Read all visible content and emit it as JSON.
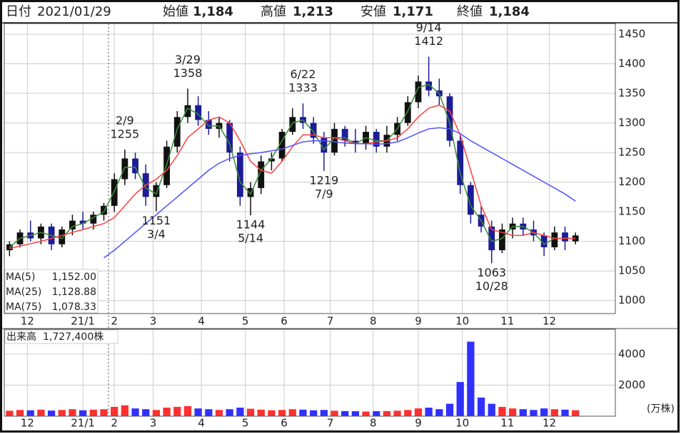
{
  "header": {
    "date_label": "日付",
    "date": "2021/01/29",
    "items": [
      {
        "name": "始値",
        "value": {
          "value": 1184,
          "label": "1,184"
        },
        "color": "#111111"
      },
      {
        "name": "高値",
        "value": {
          "value": 1213,
          "label": "1,213"
        },
        "color": "#e62020"
      },
      {
        "name": "安値",
        "value": {
          "value": 1171,
          "label": "1,171"
        },
        "color": "#1f8a1f"
      },
      {
        "name": "終値",
        "value": {
          "value": 1184,
          "label": "1,184"
        },
        "color": "#111111"
      }
    ]
  },
  "chart_data": {
    "type": "candlestick",
    "open": [
      1085,
      1095,
      1115,
      1105,
      1125,
      1095,
      1120,
      1135,
      1130,
      1145,
      1160,
      1205,
      1240,
      1215,
      1175,
      1195,
      1260,
      1310,
      1330,
      1305,
      1290,
      1300,
      1250,
      1175,
      1190,
      1235,
      1240,
      1285,
      1310,
      1300,
      1275,
      1250,
      1290,
      1270,
      1265,
      1285,
      1260,
      1280,
      1300,
      1335,
      1370,
      1355,
      1345,
      1270,
      1195,
      1145,
      1125,
      1085,
      1120,
      1130,
      1120,
      1110,
      1090,
      1115,
      1100
    ],
    "high": [
      1100,
      1120,
      1135,
      1130,
      1130,
      1125,
      1145,
      1150,
      1150,
      1165,
      1215,
      1255,
      1250,
      1230,
      1200,
      1270,
      1320,
      1358,
      1345,
      1320,
      1310,
      1305,
      1260,
      1200,
      1245,
      1250,
      1290,
      1325,
      1333,
      1310,
      1285,
      1300,
      1295,
      1290,
      1295,
      1290,
      1295,
      1310,
      1345,
      1380,
      1412,
      1375,
      1350,
      1280,
      1200,
      1160,
      1135,
      1130,
      1140,
      1140,
      1135,
      1115,
      1125,
      1125,
      1115
    ],
    "low": [
      1075,
      1090,
      1100,
      1095,
      1085,
      1090,
      1110,
      1120,
      1120,
      1135,
      1150,
      1195,
      1205,
      1160,
      1151,
      1190,
      1250,
      1300,
      1295,
      1280,
      1275,
      1235,
      1160,
      1144,
      1180,
      1220,
      1235,
      1280,
      1290,
      1265,
      1219,
      1245,
      1260,
      1250,
      1255,
      1250,
      1250,
      1270,
      1295,
      1325,
      1345,
      1330,
      1260,
      1180,
      1130,
      1115,
      1063,
      1080,
      1105,
      1110,
      1100,
      1075,
      1085,
      1085,
      1095
    ],
    "close": [
      1095,
      1115,
      1105,
      1125,
      1095,
      1120,
      1135,
      1130,
      1145,
      1160,
      1205,
      1240,
      1215,
      1175,
      1195,
      1260,
      1310,
      1330,
      1305,
      1290,
      1300,
      1250,
      1175,
      1190,
      1235,
      1240,
      1285,
      1310,
      1300,
      1275,
      1250,
      1290,
      1270,
      1265,
      1285,
      1260,
      1280,
      1300,
      1335,
      1370,
      1355,
      1345,
      1270,
      1195,
      1145,
      1125,
      1085,
      1120,
      1130,
      1120,
      1110,
      1090,
      1115,
      1100,
      1110
    ],
    "up_color": "#111111",
    "down_color": "#1c1c96",
    "xlim": [
      0,
      58.3
    ],
    "xticks": [
      {
        "value": 2.2,
        "label": "12"
      },
      {
        "value": 7.5,
        "label": "21/1"
      },
      {
        "value": 10.5,
        "label": "2"
      },
      {
        "value": 14.2,
        "label": "3"
      },
      {
        "value": 18.8,
        "label": "4"
      },
      {
        "value": 23.0,
        "label": "5"
      },
      {
        "value": 26.7,
        "label": "6"
      },
      {
        "value": 31.1,
        "label": "7"
      },
      {
        "value": 35.2,
        "label": "8"
      },
      {
        "value": 39.5,
        "label": "9"
      },
      {
        "value": 43.7,
        "label": "10"
      },
      {
        "value": 48.0,
        "label": "11"
      },
      {
        "value": 52.0,
        "label": "12"
      }
    ],
    "ylim": [
      978,
      1468
    ],
    "yticks": [
      1000,
      1050,
      1100,
      1150,
      1200,
      1250,
      1300,
      1350,
      1400,
      1450
    ],
    "grid": true,
    "series": [
      {
        "name": "MA(5)",
        "color": "#3c8c3c",
        "current": {
          "value": 1152.0,
          "label": "1,152.00"
        },
        "values": [
          1090,
          1105,
          1110,
          1115,
          1110,
          1105,
          1125,
          1130,
          1140,
          1150,
          1185,
          1225,
          1225,
          1190,
          1180,
          1230,
          1290,
          1325,
          1315,
          1295,
          1295,
          1265,
          1200,
          1180,
          1220,
          1240,
          1270,
          1300,
          1305,
          1285,
          1255,
          1275,
          1275,
          1265,
          1275,
          1270,
          1270,
          1290,
          1320,
          1360,
          1365,
          1350,
          1300,
          1215,
          1160,
          1135,
          1100,
          1105,
          1125,
          1125,
          1115,
          1095,
          1105,
          1105,
          1105
        ]
      },
      {
        "name": "MA(25)",
        "color": "#ff4040",
        "current": {
          "value": 1128.88,
          "label": "1,128.88"
        },
        "values": [
          1088,
          1092,
          1096,
          1100,
          1105,
          1110,
          1115,
          1120,
          1125,
          1130,
          1140,
          1160,
          1180,
          1195,
          1205,
          1220,
          1245,
          1275,
          1290,
          1305,
          1310,
          1300,
          1270,
          1235,
          1220,
          1215,
          1235,
          1260,
          1280,
          1280,
          1275,
          1275,
          1270,
          1265,
          1265,
          1268,
          1270,
          1275,
          1290,
          1310,
          1325,
          1330,
          1320,
          1280,
          1220,
          1160,
          1120,
          1115,
          1110,
          1110,
          1115,
          1110,
          1105,
          1105,
          1105
        ]
      },
      {
        "name": "MA(75)",
        "color": "#5050ff",
        "current": {
          "value": 1078.33,
          "label": "1,078.33"
        },
        "values": [
          null,
          null,
          null,
          null,
          null,
          null,
          null,
          null,
          null,
          1072,
          1085,
          1100,
          1115,
          1130,
          1145,
          1160,
          1175,
          1190,
          1205,
          1220,
          1232,
          1240,
          1245,
          1248,
          1250,
          1253,
          1256,
          1262,
          1268,
          1270,
          1270,
          1268,
          1266,
          1265,
          1265,
          1264,
          1265,
          1268,
          1275,
          1283,
          1290,
          1292,
          1290,
          1282,
          1270,
          1260,
          1250,
          1240,
          1230,
          1220,
          1210,
          1200,
          1190,
          1180,
          1168
        ]
      }
    ],
    "annotations": [
      {
        "date": "2/9",
        "value": 1255
      },
      {
        "date": "3/29",
        "value": 1358
      },
      {
        "date": "3/4",
        "value": 1151
      },
      {
        "date": "5/14",
        "value": 1144
      },
      {
        "date": "6/22",
        "value": 1333
      },
      {
        "date": "7/9",
        "value": 1219
      },
      {
        "date": "9/14",
        "value": 1412
      },
      {
        "date": "10/28",
        "value": 1063
      }
    ],
    "volume": {
      "name": "出来高",
      "total": {
        "value": 1727400,
        "label": "1,727,400株"
      },
      "unit": "(万株)",
      "up_color": "#ff3030",
      "down_color": "#3030ff",
      "ylim": [
        0,
        5600
      ],
      "yticks": [
        2000,
        4000
      ],
      "values": [
        350,
        400,
        380,
        420,
        360,
        400,
        450,
        380,
        420,
        450,
        600,
        700,
        500,
        450,
        400,
        550,
        600,
        650,
        500,
        450,
        400,
        450,
        550,
        480,
        420,
        380,
        400,
        450,
        420,
        380,
        400,
        350,
        330,
        320,
        300,
        320,
        330,
        350,
        400,
        500,
        550,
        450,
        800,
        2200,
        4800,
        1200,
        800,
        600,
        500,
        450,
        400,
        500,
        450,
        420,
        380
      ]
    }
  }
}
